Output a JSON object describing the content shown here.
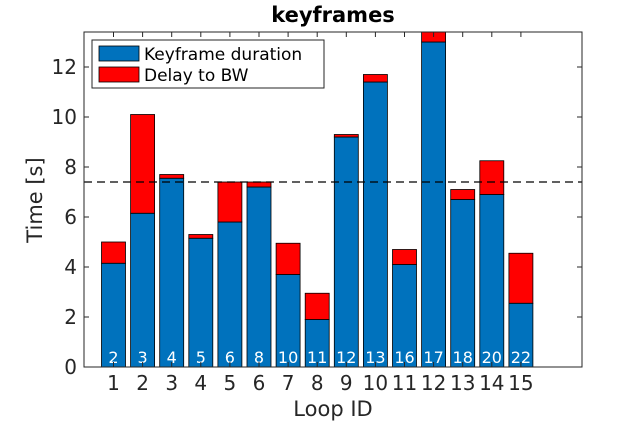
{
  "chart_data": {
    "type": "bar",
    "stacked": true,
    "title": "keyframes",
    "xlabel": "Loop ID",
    "ylabel": "Time [s]",
    "categories": [
      "1",
      "2",
      "3",
      "4",
      "5",
      "6",
      "7",
      "8",
      "9",
      "10",
      "11",
      "12",
      "13",
      "14",
      "15"
    ],
    "bar_labels": [
      "2",
      "3",
      "4",
      "5",
      "6",
      "8",
      "10",
      "11",
      "12",
      "13",
      "16",
      "17",
      "18",
      "20",
      "22"
    ],
    "series": [
      {
        "name": "Keyframe duration",
        "color": "#0072BD",
        "values": [
          4.15,
          6.15,
          7.55,
          5.15,
          5.8,
          7.2,
          3.7,
          1.9,
          9.2,
          11.4,
          4.1,
          13.0,
          6.7,
          6.9,
          2.55
        ]
      },
      {
        "name": "Delay to BW",
        "color": "#FF0000",
        "values": [
          0.85,
          3.95,
          0.15,
          0.15,
          1.6,
          0.2,
          1.25,
          1.05,
          0.1,
          0.3,
          0.6,
          0.5,
          0.4,
          1.35,
          2.0
        ]
      }
    ],
    "reference_line": {
      "value": 7.4,
      "style": "dashed",
      "color": "#000000"
    },
    "ylim": [
      0,
      13.4
    ],
    "yticks": [
      0,
      2,
      4,
      6,
      8,
      10,
      12
    ],
    "grid": false,
    "legend_position": "top-left"
  }
}
